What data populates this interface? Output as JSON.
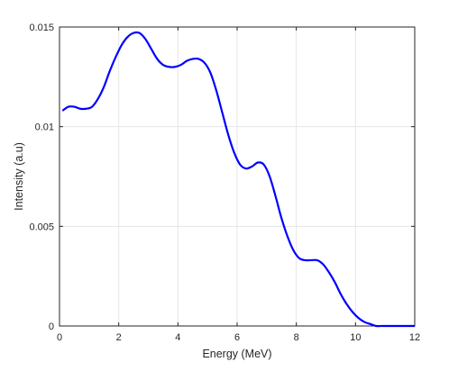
{
  "chart_data": {
    "type": "line",
    "xlabel": "Energy (MeV)",
    "ylabel": "Intensity (a.u)",
    "xlim": [
      0,
      12
    ],
    "ylim": [
      0,
      0.015
    ],
    "xticks": [
      0,
      2,
      4,
      6,
      8,
      10,
      12
    ],
    "xtick_labels": [
      "0",
      "2",
      "4",
      "6",
      "8",
      "10",
      "12"
    ],
    "yticks": [
      0,
      0.005,
      0.01,
      0.015
    ],
    "ytick_labels": [
      "0",
      "0.005",
      "0.01",
      "0.015"
    ],
    "grid": true,
    "box": true,
    "series": [
      {
        "color": "#0000ff",
        "x": [
          0.1,
          0.3,
          0.5,
          0.7,
          0.9,
          1.1,
          1.3,
          1.5,
          1.7,
          1.9,
          2.1,
          2.3,
          2.5,
          2.7,
          2.9,
          3.1,
          3.3,
          3.5,
          3.7,
          3.9,
          4.1,
          4.3,
          4.5,
          4.7,
          4.9,
          5.1,
          5.3,
          5.5,
          5.7,
          5.9,
          6.1,
          6.3,
          6.5,
          6.7,
          6.9,
          7.1,
          7.3,
          7.5,
          7.7,
          7.9,
          8.1,
          8.3,
          8.5,
          8.7,
          8.9,
          9.1,
          9.3,
          9.5,
          9.7,
          9.9,
          10.1,
          10.3,
          10.5,
          10.7,
          10.9,
          11.1,
          11.3,
          11.5,
          11.7,
          11.9,
          12.0
        ],
        "y": [
          0.0108,
          0.011,
          0.011,
          0.0109,
          0.0109,
          0.011,
          0.0114,
          0.012,
          0.0128,
          0.0135,
          0.0141,
          0.0145,
          0.0147,
          0.0147,
          0.0144,
          0.0139,
          0.0134,
          0.0131,
          0.013,
          0.013,
          0.0131,
          0.0133,
          0.0134,
          0.0134,
          0.0132,
          0.0127,
          0.0118,
          0.0107,
          0.0096,
          0.0087,
          0.0081,
          0.0079,
          0.008,
          0.0082,
          0.0081,
          0.0075,
          0.0065,
          0.0054,
          0.0045,
          0.0038,
          0.0034,
          0.0033,
          0.0033,
          0.0033,
          0.0031,
          0.0027,
          0.0022,
          0.0016,
          0.0011,
          0.0007,
          0.0004,
          0.0002,
          0.0001,
          0.0,
          0.0,
          0.0,
          0.0,
          0.0,
          0.0,
          0.0,
          0.0
        ]
      }
    ]
  }
}
